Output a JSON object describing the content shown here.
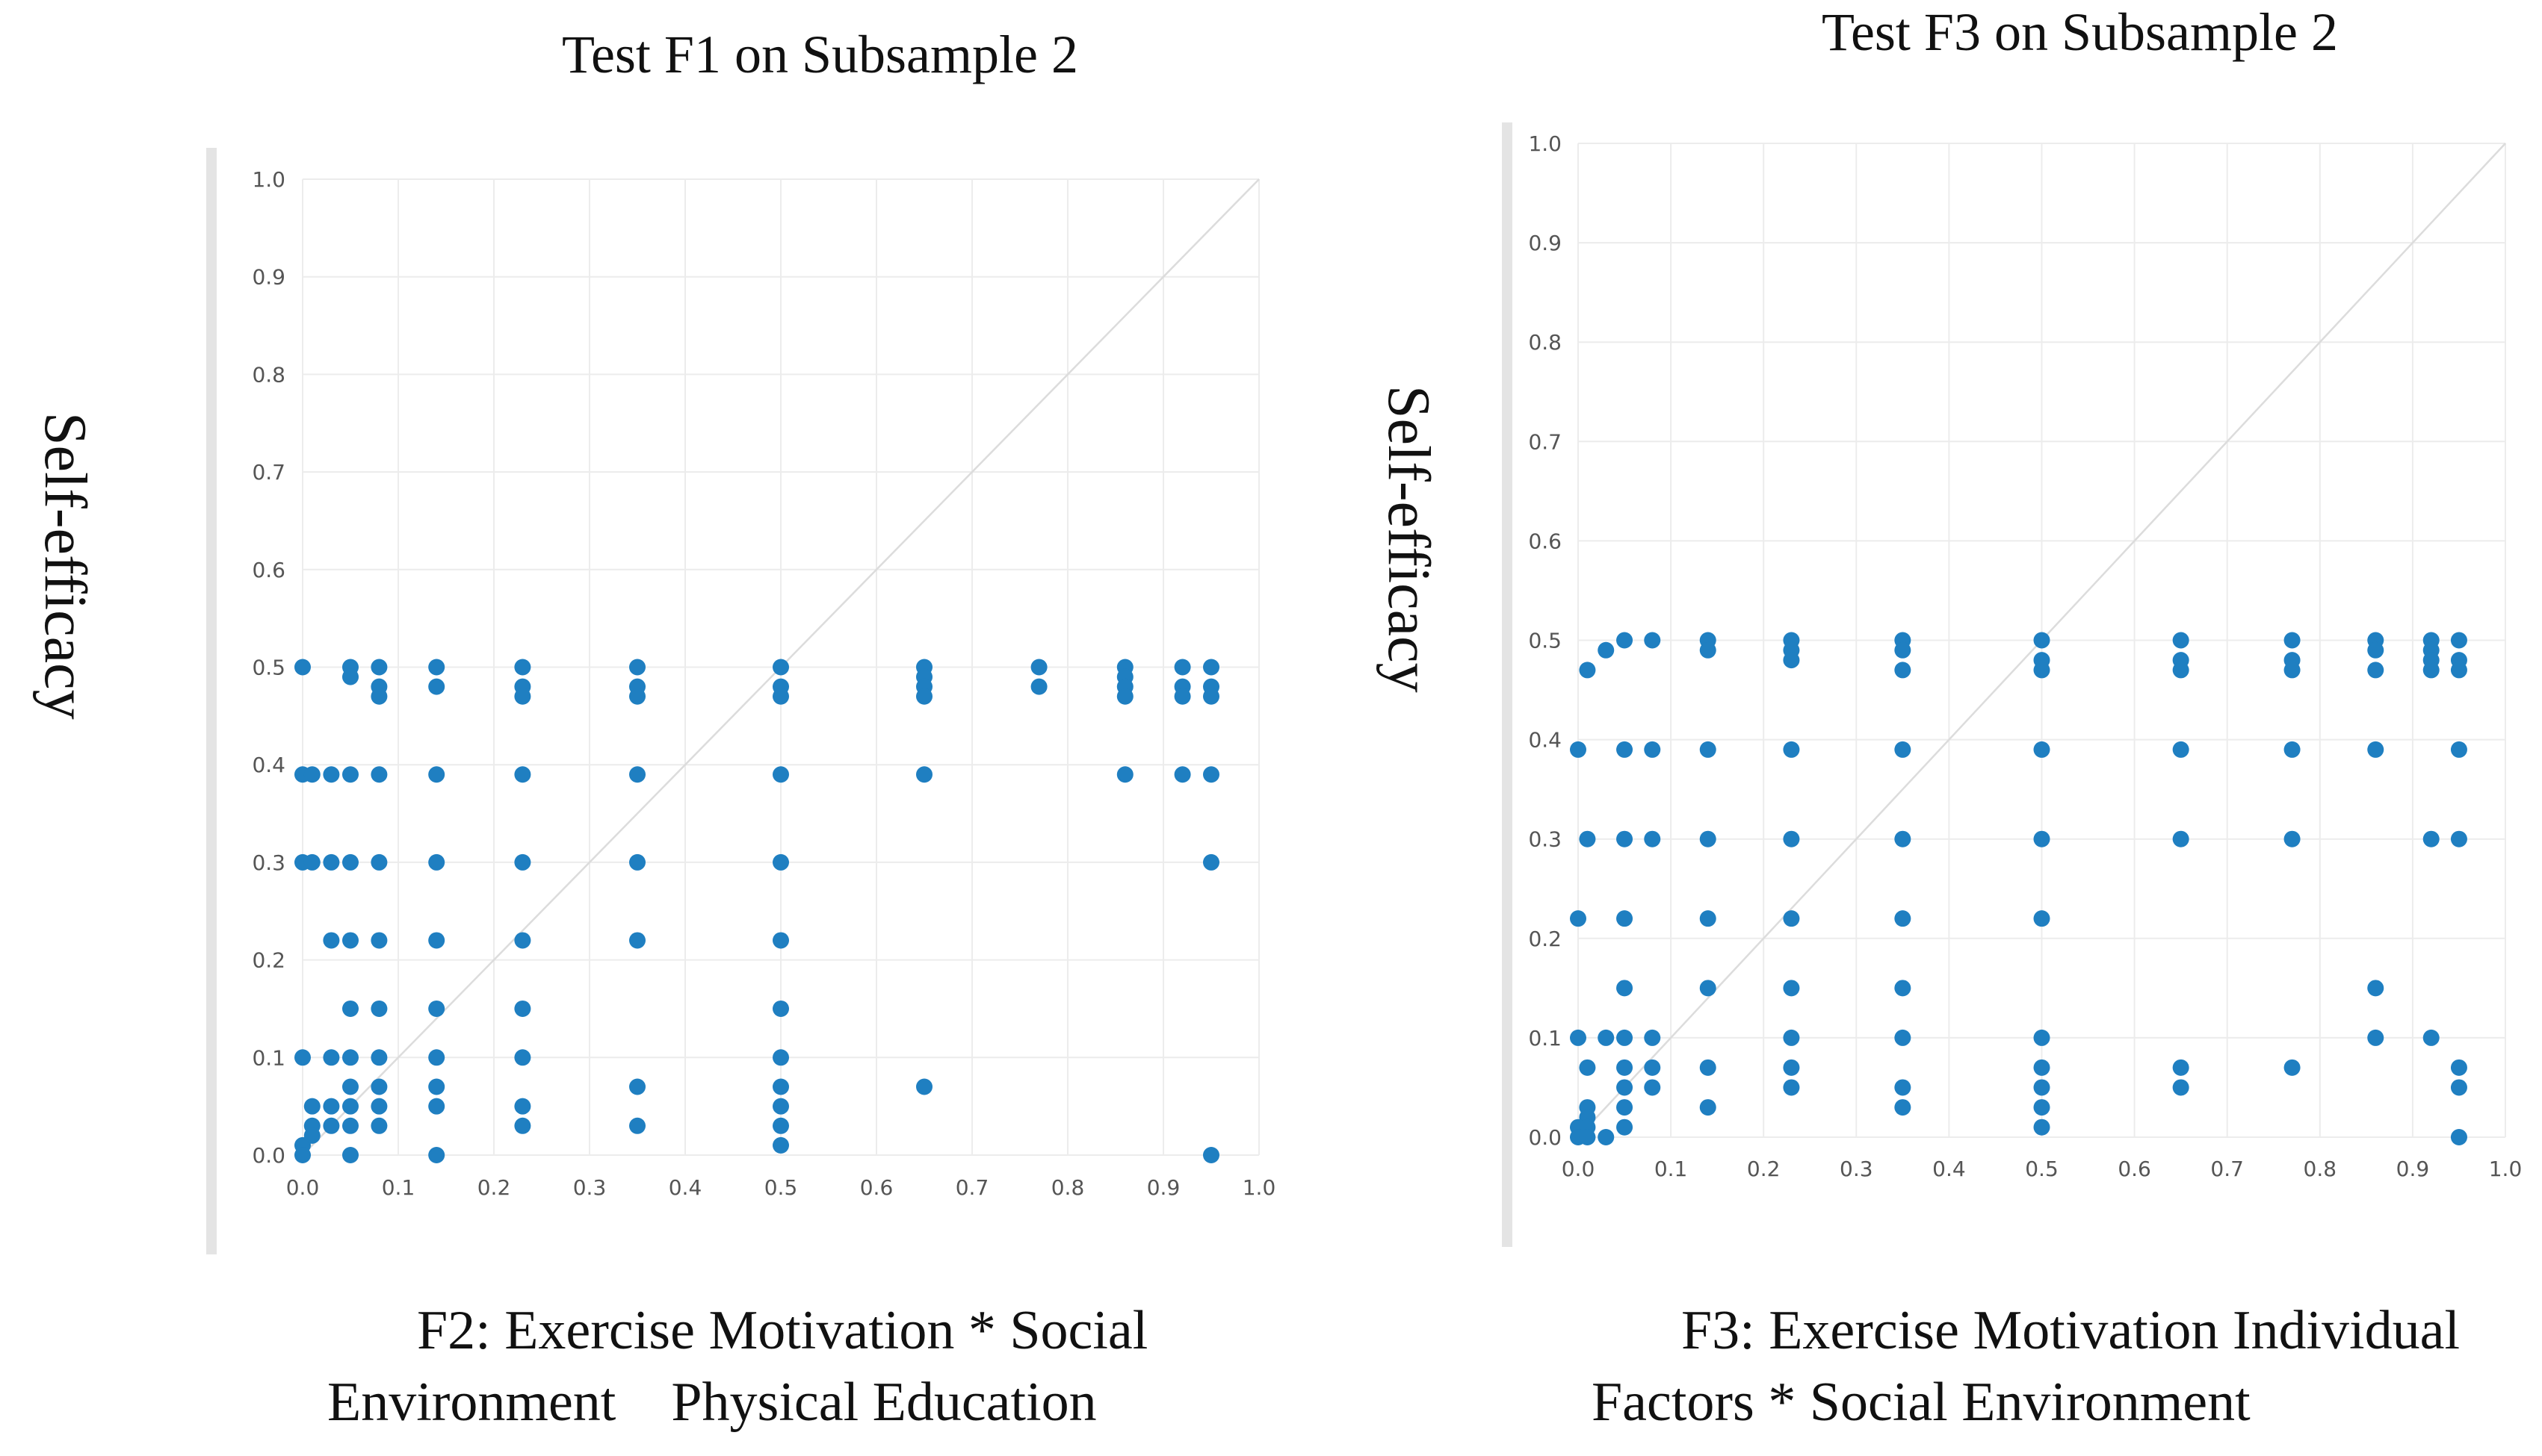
{
  "chart_data": [
    {
      "type": "scatter",
      "title": "Test F1 on Subsample 2",
      "ylabel": "Self-efficacy",
      "xlabel_lines": [
        "F2: Exercise Motivation * Social",
        "Environment    Physical Education"
      ],
      "xlim": [
        0,
        1
      ],
      "ylim": [
        0,
        1
      ],
      "xticks": [
        "0.0",
        "0.1",
        "0.2",
        "0.3",
        "0.4",
        "0.5",
        "0.6",
        "0.7",
        "0.8",
        "0.9",
        "1.0"
      ],
      "yticks": [
        "0.0",
        "0.1",
        "0.2",
        "0.3",
        "0.4",
        "0.5",
        "0.6",
        "0.7",
        "0.8",
        "0.9",
        "1.0"
      ],
      "grid": true,
      "reference_line": "y = x",
      "series": [
        {
          "name": "points",
          "color": "#1f7fc1",
          "points": [
            [
              0.0,
              0.5
            ],
            [
              0.0,
              0.39
            ],
            [
              0.01,
              0.39
            ],
            [
              0.03,
              0.39
            ],
            [
              0.05,
              0.39
            ],
            [
              0.08,
              0.39
            ],
            [
              0.14,
              0.39
            ],
            [
              0.23,
              0.39
            ],
            [
              0.35,
              0.39
            ],
            [
              0.5,
              0.39
            ],
            [
              0.65,
              0.39
            ],
            [
              0.86,
              0.39
            ],
            [
              0.92,
              0.39
            ],
            [
              0.95,
              0.39
            ],
            [
              0.0,
              0.3
            ],
            [
              0.01,
              0.3
            ],
            [
              0.03,
              0.3
            ],
            [
              0.05,
              0.3
            ],
            [
              0.08,
              0.3
            ],
            [
              0.14,
              0.3
            ],
            [
              0.23,
              0.3
            ],
            [
              0.35,
              0.3
            ],
            [
              0.5,
              0.3
            ],
            [
              0.95,
              0.3
            ],
            [
              0.03,
              0.22
            ],
            [
              0.05,
              0.22
            ],
            [
              0.08,
              0.22
            ],
            [
              0.14,
              0.22
            ],
            [
              0.23,
              0.22
            ],
            [
              0.35,
              0.22
            ],
            [
              0.5,
              0.22
            ],
            [
              0.05,
              0.15
            ],
            [
              0.08,
              0.15
            ],
            [
              0.14,
              0.15
            ],
            [
              0.23,
              0.15
            ],
            [
              0.5,
              0.15
            ],
            [
              0.0,
              0.1
            ],
            [
              0.03,
              0.1
            ],
            [
              0.05,
              0.1
            ],
            [
              0.08,
              0.1
            ],
            [
              0.14,
              0.1
            ],
            [
              0.23,
              0.1
            ],
            [
              0.5,
              0.1
            ],
            [
              0.05,
              0.07
            ],
            [
              0.08,
              0.07
            ],
            [
              0.14,
              0.07
            ],
            [
              0.35,
              0.07
            ],
            [
              0.5,
              0.07
            ],
            [
              0.65,
              0.07
            ],
            [
              0.01,
              0.05
            ],
            [
              0.03,
              0.05
            ],
            [
              0.05,
              0.05
            ],
            [
              0.08,
              0.05
            ],
            [
              0.14,
              0.05
            ],
            [
              0.23,
              0.05
            ],
            [
              0.5,
              0.05
            ],
            [
              0.01,
              0.03
            ],
            [
              0.03,
              0.03
            ],
            [
              0.05,
              0.03
            ],
            [
              0.08,
              0.03
            ],
            [
              0.23,
              0.03
            ],
            [
              0.35,
              0.03
            ],
            [
              0.5,
              0.03
            ],
            [
              0.0,
              0.01
            ],
            [
              0.01,
              0.02
            ],
            [
              0.5,
              0.01
            ],
            [
              0.0,
              0.0
            ],
            [
              0.05,
              0.0
            ],
            [
              0.14,
              0.0
            ],
            [
              0.95,
              0.0
            ],
            [
              0.05,
              0.5
            ],
            [
              0.05,
              0.49
            ],
            [
              0.08,
              0.5
            ],
            [
              0.08,
              0.48
            ],
            [
              0.08,
              0.47
            ],
            [
              0.14,
              0.5
            ],
            [
              0.14,
              0.48
            ],
            [
              0.23,
              0.5
            ],
            [
              0.23,
              0.48
            ],
            [
              0.23,
              0.47
            ],
            [
              0.35,
              0.5
            ],
            [
              0.35,
              0.48
            ],
            [
              0.35,
              0.47
            ],
            [
              0.5,
              0.5
            ],
            [
              0.5,
              0.48
            ],
            [
              0.5,
              0.47
            ],
            [
              0.65,
              0.5
            ],
            [
              0.65,
              0.49
            ],
            [
              0.65,
              0.48
            ],
            [
              0.65,
              0.47
            ],
            [
              0.77,
              0.5
            ],
            [
              0.77,
              0.48
            ],
            [
              0.86,
              0.5
            ],
            [
              0.86,
              0.49
            ],
            [
              0.86,
              0.48
            ],
            [
              0.86,
              0.47
            ],
            [
              0.92,
              0.5
            ],
            [
              0.92,
              0.48
            ],
            [
              0.92,
              0.47
            ],
            [
              0.95,
              0.5
            ],
            [
              0.95,
              0.48
            ],
            [
              0.95,
              0.47
            ]
          ]
        }
      ]
    },
    {
      "type": "scatter",
      "title": "Test F3 on Subsample 2",
      "ylabel": "Self-efficacy",
      "xlabel_lines": [
        "F3: Exercise Motivation Individual",
        "Factors * Social Environment"
      ],
      "xlim": [
        0,
        1
      ],
      "ylim": [
        0,
        1
      ],
      "xticks": [
        "0.0",
        "0.1",
        "0.2",
        "0.3",
        "0.4",
        "0.5",
        "0.6",
        "0.7",
        "0.8",
        "0.9",
        "1.0"
      ],
      "yticks": [
        "0.0",
        "0.1",
        "0.2",
        "0.3",
        "0.4",
        "0.5",
        "0.6",
        "0.7",
        "0.8",
        "0.9",
        "1.0"
      ],
      "grid": true,
      "reference_line": "y = x",
      "series": [
        {
          "name": "points",
          "color": "#1f7fc1",
          "points": [
            [
              0.01,
              0.47
            ],
            [
              0.03,
              0.49
            ],
            [
              0.05,
              0.5
            ],
            [
              0.08,
              0.5
            ],
            [
              0.14,
              0.5
            ],
            [
              0.14,
              0.49
            ],
            [
              0.23,
              0.5
            ],
            [
              0.23,
              0.49
            ],
            [
              0.23,
              0.48
            ],
            [
              0.35,
              0.5
            ],
            [
              0.35,
              0.49
            ],
            [
              0.35,
              0.47
            ],
            [
              0.5,
              0.5
            ],
            [
              0.5,
              0.48
            ],
            [
              0.5,
              0.47
            ],
            [
              0.65,
              0.5
            ],
            [
              0.65,
              0.48
            ],
            [
              0.65,
              0.47
            ],
            [
              0.77,
              0.5
            ],
            [
              0.77,
              0.48
            ],
            [
              0.77,
              0.47
            ],
            [
              0.86,
              0.5
            ],
            [
              0.86,
              0.49
            ],
            [
              0.86,
              0.47
            ],
            [
              0.92,
              0.5
            ],
            [
              0.92,
              0.49
            ],
            [
              0.92,
              0.48
            ],
            [
              0.92,
              0.47
            ],
            [
              0.95,
              0.5
            ],
            [
              0.95,
              0.48
            ],
            [
              0.95,
              0.47
            ],
            [
              0.0,
              0.39
            ],
            [
              0.05,
              0.39
            ],
            [
              0.08,
              0.39
            ],
            [
              0.14,
              0.39
            ],
            [
              0.23,
              0.39
            ],
            [
              0.35,
              0.39
            ],
            [
              0.5,
              0.39
            ],
            [
              0.65,
              0.39
            ],
            [
              0.77,
              0.39
            ],
            [
              0.86,
              0.39
            ],
            [
              0.95,
              0.39
            ],
            [
              0.01,
              0.3
            ],
            [
              0.05,
              0.3
            ],
            [
              0.08,
              0.3
            ],
            [
              0.14,
              0.3
            ],
            [
              0.23,
              0.3
            ],
            [
              0.35,
              0.3
            ],
            [
              0.5,
              0.3
            ],
            [
              0.65,
              0.3
            ],
            [
              0.77,
              0.3
            ],
            [
              0.92,
              0.3
            ],
            [
              0.95,
              0.3
            ],
            [
              0.0,
              0.22
            ],
            [
              0.05,
              0.22
            ],
            [
              0.14,
              0.22
            ],
            [
              0.23,
              0.22
            ],
            [
              0.35,
              0.22
            ],
            [
              0.5,
              0.22
            ],
            [
              0.05,
              0.15
            ],
            [
              0.14,
              0.15
            ],
            [
              0.23,
              0.15
            ],
            [
              0.35,
              0.15
            ],
            [
              0.86,
              0.15
            ],
            [
              0.0,
              0.1
            ],
            [
              0.03,
              0.1
            ],
            [
              0.05,
              0.1
            ],
            [
              0.08,
              0.1
            ],
            [
              0.23,
              0.1
            ],
            [
              0.35,
              0.1
            ],
            [
              0.5,
              0.1
            ],
            [
              0.86,
              0.1
            ],
            [
              0.92,
              0.1
            ],
            [
              0.01,
              0.07
            ],
            [
              0.05,
              0.07
            ],
            [
              0.08,
              0.07
            ],
            [
              0.14,
              0.07
            ],
            [
              0.23,
              0.07
            ],
            [
              0.5,
              0.07
            ],
            [
              0.65,
              0.07
            ],
            [
              0.77,
              0.07
            ],
            [
              0.95,
              0.07
            ],
            [
              0.05,
              0.05
            ],
            [
              0.08,
              0.05
            ],
            [
              0.23,
              0.05
            ],
            [
              0.35,
              0.05
            ],
            [
              0.5,
              0.05
            ],
            [
              0.65,
              0.05
            ],
            [
              0.95,
              0.05
            ],
            [
              0.05,
              0.03
            ],
            [
              0.14,
              0.03
            ],
            [
              0.35,
              0.03
            ],
            [
              0.5,
              0.03
            ],
            [
              0.01,
              0.03
            ],
            [
              0.01,
              0.02
            ],
            [
              0.0,
              0.01
            ],
            [
              0.01,
              0.01
            ],
            [
              0.0,
              0.0
            ],
            [
              0.01,
              0.0
            ],
            [
              0.03,
              0.0
            ],
            [
              0.05,
              0.01
            ],
            [
              0.5,
              0.01
            ],
            [
              0.95,
              0.0
            ]
          ]
        }
      ]
    }
  ]
}
